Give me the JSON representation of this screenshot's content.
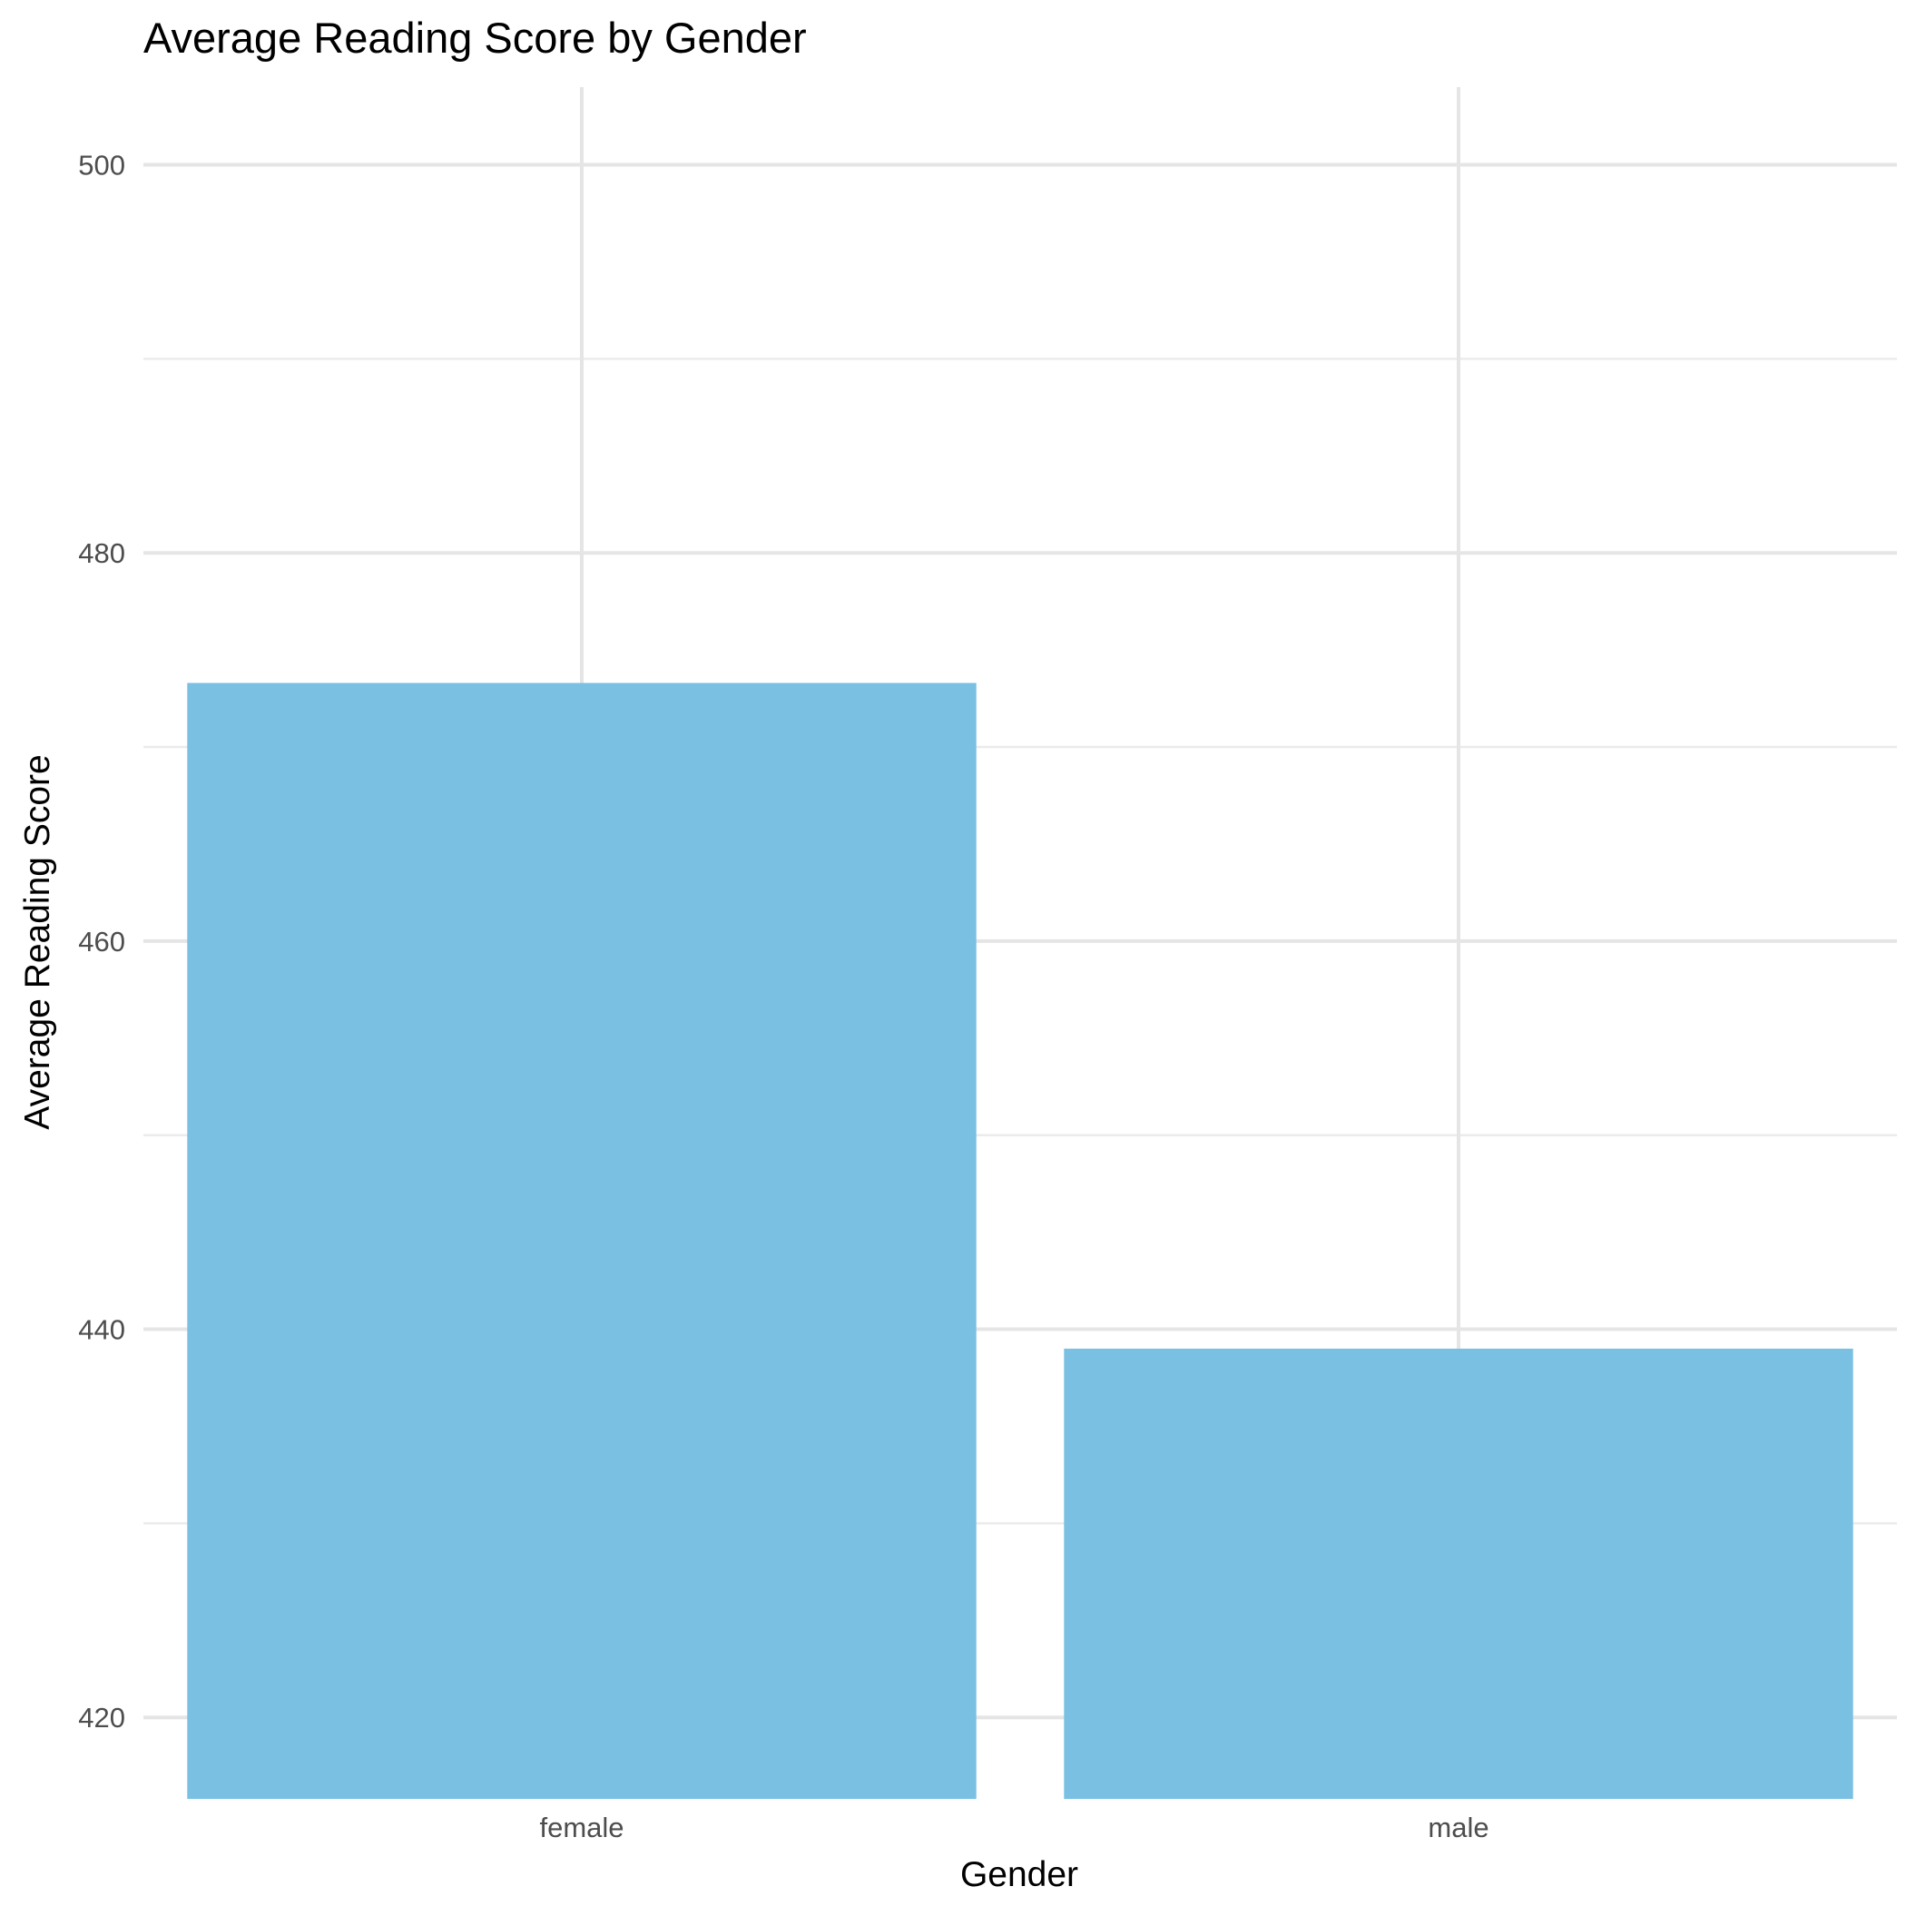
{
  "chart_data": {
    "type": "bar",
    "title": "Average Reading Score by Gender",
    "xlabel": "Gender",
    "ylabel": "Average Reading Score",
    "categories": [
      "female",
      "male"
    ],
    "values": [
      473.3,
      439.0
    ],
    "ylim": [
      415.8,
      504.0
    ],
    "yticks": [
      420,
      440,
      460,
      480,
      500
    ],
    "y_minor_ticks": [
      430,
      450,
      470,
      490
    ],
    "grid": true,
    "legend": "none",
    "colors": {
      "bar": "#79C0E3",
      "grid": "#E5E5E5",
      "background": "#FFFFFF"
    }
  }
}
